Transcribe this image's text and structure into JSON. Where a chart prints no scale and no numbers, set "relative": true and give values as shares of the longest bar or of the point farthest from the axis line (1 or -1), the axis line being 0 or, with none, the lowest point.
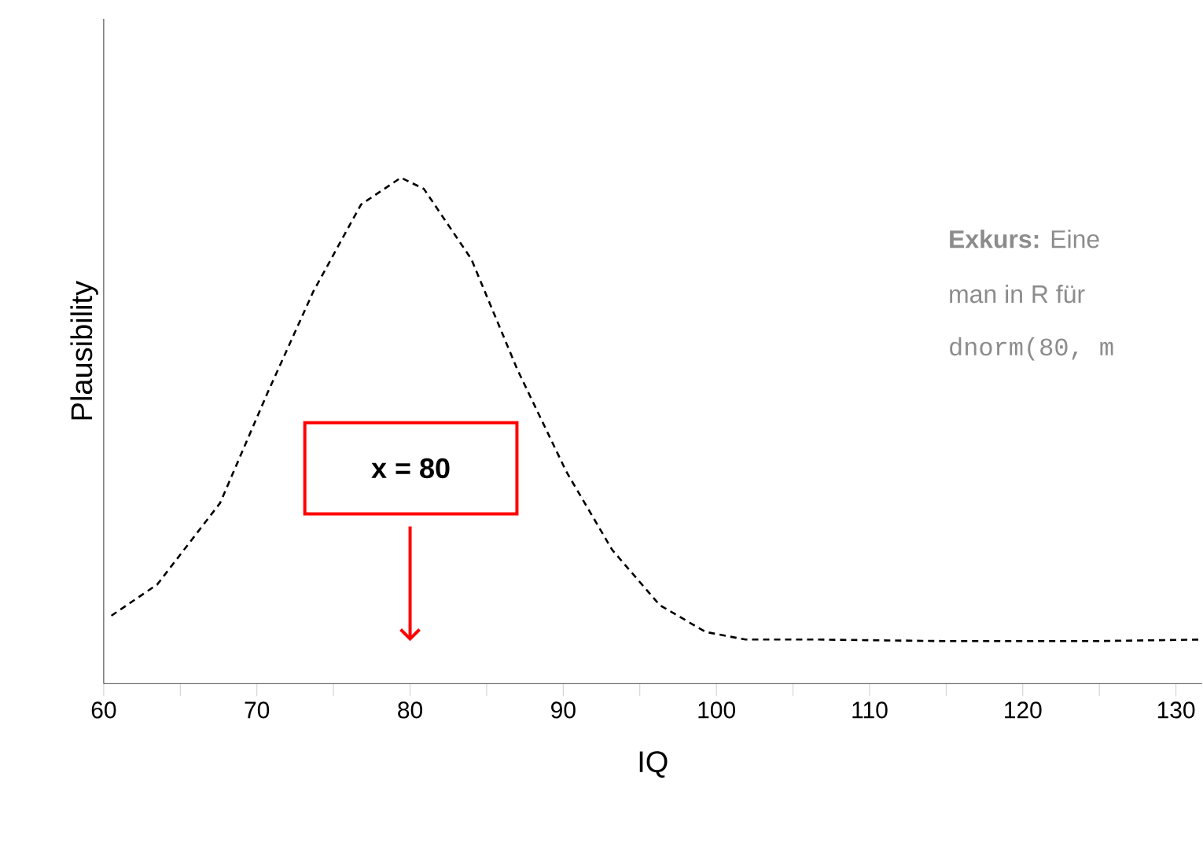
{
  "chart_data": {
    "type": "line",
    "xlabel": "IQ",
    "ylabel": "Plausibility",
    "relative": true,
    "xlim": [
      60,
      131.7
    ],
    "xticks": [
      60,
      {
        "value": 65,
        "label": null
      },
      70,
      {
        "value": 75,
        "label": null
      },
      80,
      {
        "value": 85,
        "label": null
      },
      90,
      {
        "value": 95,
        "label": null
      },
      100,
      {
        "value": 105,
        "label": null
      },
      110,
      {
        "value": 115,
        "label": null
      },
      120,
      {
        "value": 125,
        "label": null
      },
      130
    ],
    "series": [
      {
        "color": "#000000",
        "x": [
          60.5,
          63.5,
          67.6,
          70.7,
          73.7,
          76.8,
          79.4,
          80.9,
          84,
          87,
          90.2,
          93.2,
          96.3,
          99.3,
          101.9,
          106.5,
          114.7,
          125,
          131.7
        ],
        "values": [
          0.134,
          0.196,
          0.357,
          0.575,
          0.776,
          0.947,
          1.0,
          0.978,
          0.839,
          0.621,
          0.419,
          0.264,
          0.155,
          0.102,
          0.087,
          0.087,
          0.084,
          0.084,
          0.087
        ]
      }
    ],
    "line_style": "dashed",
    "marker": "none",
    "annotations": [
      "x = 80",
      "**Exkurs:** Eine",
      "man in R für",
      "dnorm(80, m"
    ]
  }
}
